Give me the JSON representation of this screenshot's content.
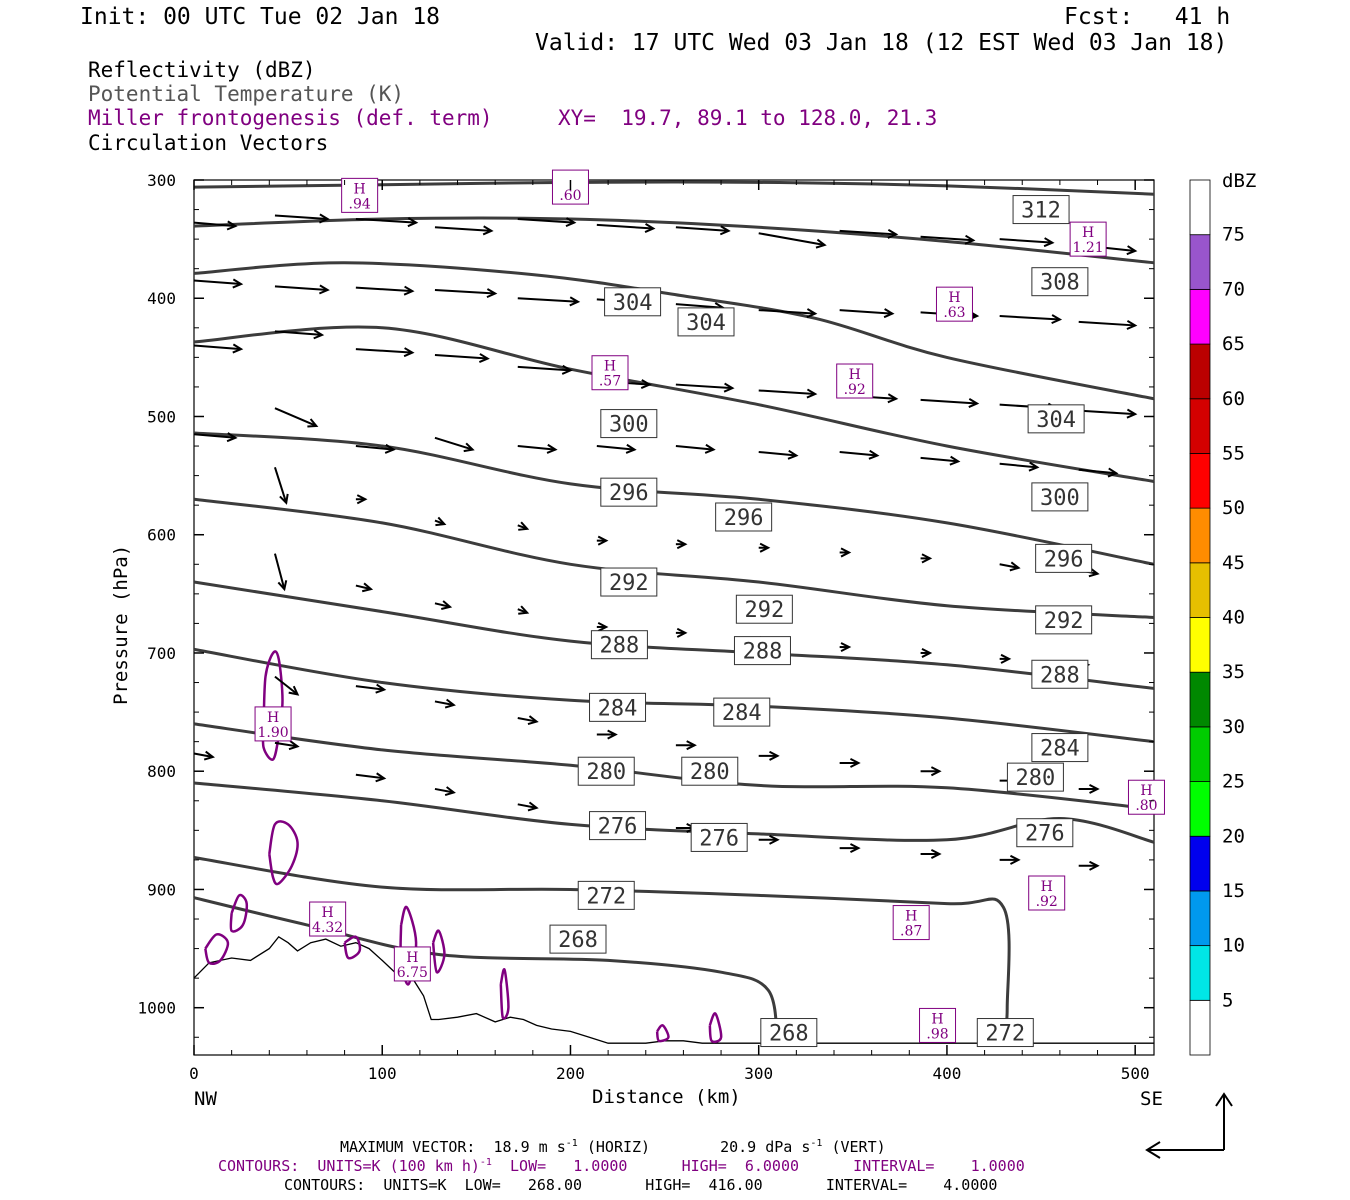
{
  "header": {
    "init": "Init: 00 UTC Tue 02 Jan 18",
    "fcst": "Fcst:   41 h",
    "valid": "Valid: 17 UTC Wed 03 Jan 18 (12 EST Wed 03 Jan 18)"
  },
  "titles": {
    "reflectivity": "Reflectivity (dBZ)",
    "theta": "Potential Temperature (K)",
    "fronto": "Miller frontogenesis (def. term)",
    "xy": "XY=  19.7, 89.1 to 128.0, 21.3",
    "circulation": "Circulation Vectors"
  },
  "axes": {
    "ylabel": "Pressure (hPa)",
    "xlabel": "Distance (km)",
    "left_end": "NW",
    "right_end": "SE",
    "xrange": [
      0,
      510
    ],
    "yrange": [
      300,
      1040
    ],
    "y_ticks": [
      300,
      400,
      500,
      600,
      700,
      800,
      900,
      1000
    ],
    "x_ticks": [
      0,
      100,
      200,
      300,
      400,
      500
    ],
    "y_tick_labels": [
      "300",
      "400",
      "500",
      "600",
      "700",
      "800",
      "900",
      "1000"
    ],
    "x_tick_labels": [
      "0",
      "100",
      "200",
      "300",
      "400",
      "500"
    ]
  },
  "colorbar": {
    "unit": "dBZ",
    "levels": [
      "5",
      "10",
      "15",
      "20",
      "25",
      "30",
      "35",
      "40",
      "45",
      "50",
      "55",
      "60",
      "65",
      "70",
      "75"
    ],
    "colors": [
      "#ffffff",
      "#00e6e6",
      "#0099ee",
      "#0000ee",
      "#00ff00",
      "#00cc00",
      "#008800",
      "#ffff00",
      "#e6bf00",
      "#ff8c00",
      "#ff0000",
      "#d40000",
      "#bb0000",
      "#ff00ff",
      "#9955cc",
      "#ffffff"
    ]
  },
  "footer": {
    "max_vector": "MAXIMUM VECTOR:  18.9 m s",
    "max_vector_sup": "-1",
    "max_vector_h": " (HORIZ)",
    "max_vector_v": "20.9 dPa s",
    "max_vector_v_sup": "-1",
    "max_vector_v2": " (VERT)",
    "contours1_a": "CONTOURS:  UNITS=K (100 km h)",
    "contours1_sup": "-1",
    "contours1_b": "  LOW=   1.0000      HIGH=  6.0000      INTERVAL=    1.0000",
    "contours2": "CONTOURS:  UNITS=K  LOW=   268.00       HIGH=  416.00       INTERVAL=    4.0000"
  },
  "theta_contours": [
    {
      "label": "312",
      "pts": [
        [
          0,
          306
        ],
        [
          100,
          304
        ],
        [
          200,
          302
        ],
        [
          300,
          302
        ],
        [
          400,
          305
        ],
        [
          510,
          312
        ]
      ],
      "labels": [
        [
          450,
          325
        ]
      ]
    },
    {
      "label": "308",
      "pts": [
        [
          0,
          339
        ],
        [
          100,
          333
        ],
        [
          200,
          333
        ],
        [
          300,
          340
        ],
        [
          400,
          352
        ],
        [
          510,
          370
        ]
      ],
      "labels": [
        [
          460,
          386
        ]
      ]
    },
    {
      "label": "304",
      "pts": [
        [
          0,
          379
        ],
        [
          80,
          370
        ],
        [
          180,
          380
        ],
        [
          260,
          398
        ],
        [
          330,
          417
        ],
        [
          400,
          450
        ],
        [
          510,
          485
        ]
      ],
      "labels": [
        [
          233,
          403
        ],
        [
          272,
          420
        ],
        [
          458,
          502
        ]
      ]
    },
    {
      "label": "300",
      "pts": [
        [
          0,
          437
        ],
        [
          100,
          425
        ],
        [
          200,
          460
        ],
        [
          300,
          490
        ],
        [
          400,
          525
        ],
        [
          510,
          555
        ]
      ],
      "labels": [
        [
          231,
          506
        ],
        [
          460,
          568
        ]
      ]
    },
    {
      "label": "296",
      "pts": [
        [
          0,
          514
        ],
        [
          100,
          525
        ],
        [
          200,
          557
        ],
        [
          300,
          570
        ],
        [
          400,
          590
        ],
        [
          510,
          625
        ]
      ],
      "labels": [
        [
          231,
          564
        ],
        [
          292,
          585
        ],
        [
          462,
          620
        ]
      ]
    },
    {
      "label": "292",
      "pts": [
        [
          0,
          570
        ],
        [
          100,
          590
        ],
        [
          200,
          625
        ],
        [
          300,
          640
        ],
        [
          400,
          660
        ],
        [
          510,
          670
        ]
      ],
      "labels": [
        [
          231,
          640
        ],
        [
          303,
          663
        ],
        [
          462,
          672
        ]
      ]
    },
    {
      "label": "288",
      "pts": [
        [
          0,
          640
        ],
        [
          100,
          665
        ],
        [
          200,
          690
        ],
        [
          300,
          700
        ],
        [
          400,
          710
        ],
        [
          510,
          730
        ]
      ],
      "labels": [
        [
          226,
          693
        ],
        [
          302,
          698
        ],
        [
          460,
          718
        ]
      ]
    },
    {
      "label": "284",
      "pts": [
        [
          0,
          697
        ],
        [
          100,
          725
        ],
        [
          200,
          740
        ],
        [
          300,
          745
        ],
        [
          400,
          755
        ],
        [
          510,
          775
        ]
      ],
      "labels": [
        [
          225,
          746
        ],
        [
          291,
          750
        ],
        [
          460,
          780
        ]
      ]
    },
    {
      "label": "280",
      "pts": [
        [
          0,
          760
        ],
        [
          100,
          782
        ],
        [
          200,
          795
        ],
        [
          300,
          812
        ],
        [
          400,
          814
        ],
        [
          510,
          832
        ]
      ],
      "labels": [
        [
          219,
          800
        ],
        [
          274,
          800
        ],
        [
          447,
          805
        ]
      ]
    },
    {
      "label": "276",
      "pts": [
        [
          0,
          810
        ],
        [
          100,
          825
        ],
        [
          200,
          845
        ],
        [
          300,
          853
        ],
        [
          400,
          858
        ],
        [
          460,
          840
        ],
        [
          510,
          860
        ]
      ],
      "labels": [
        [
          225,
          846
        ],
        [
          279,
          856
        ],
        [
          452,
          852
        ]
      ]
    },
    {
      "label": "272",
      "pts": [
        [
          0,
          873
        ],
        [
          100,
          898
        ],
        [
          200,
          900
        ],
        [
          300,
          905
        ],
        [
          400,
          912
        ],
        [
          430,
          915
        ],
        [
          432,
          1000
        ],
        [
          430,
          1030
        ]
      ],
      "labels": [
        [
          219,
          905
        ],
        [
          431,
          1021
        ]
      ]
    },
    {
      "label": "268",
      "pts": [
        [
          0,
          907
        ],
        [
          60,
          930
        ],
        [
          130,
          955
        ],
        [
          220,
          960
        ],
        [
          280,
          970
        ],
        [
          305,
          985
        ],
        [
          310,
          1030
        ]
      ],
      "labels": [
        [
          204,
          942
        ],
        [
          316,
          1021
        ]
      ]
    }
  ],
  "highs": [
    {
      "h": "H",
      "v": ".94",
      "x": 88,
      "p": 313
    },
    {
      "h": "",
      "v": ".60",
      "x": 200,
      "p": 306
    },
    {
      "h": "H",
      "v": "1.21",
      "x": 475,
      "p": 350
    },
    {
      "h": "H",
      "v": ".63",
      "x": 404,
      "p": 405
    },
    {
      "h": "H",
      "v": ".57",
      "x": 221,
      "p": 463
    },
    {
      "h": "H",
      "v": ".92",
      "x": 351,
      "p": 470
    },
    {
      "h": "H",
      "v": "1.90",
      "x": 42,
      "p": 760
    },
    {
      "h": "H",
      "v": "4.32",
      "x": 71,
      "p": 925
    },
    {
      "h": "H",
      "v": "6.75",
      "x": 116,
      "p": 963
    },
    {
      "h": "H",
      "v": ".87",
      "x": 381,
      "p": 928
    },
    {
      "h": "H",
      "v": ".92",
      "x": 453,
      "p": 903
    },
    {
      "h": "H",
      "v": ".98",
      "x": 395,
      "p": 1015
    },
    {
      "h": "H",
      "v": ".80",
      "x": 506,
      "p": 822
    }
  ],
  "fronto_contours": [
    {
      "pts": [
        [
          37,
          760
        ],
        [
          38,
          720
        ],
        [
          42,
          700
        ],
        [
          45,
          705
        ],
        [
          47,
          740
        ],
        [
          45,
          770
        ],
        [
          42,
          790
        ],
        [
          37,
          780
        ],
        [
          37,
          760
        ]
      ]
    },
    {
      "pts": [
        [
          40,
          870
        ],
        [
          43,
          845
        ],
        [
          50,
          845
        ],
        [
          55,
          860
        ],
        [
          52,
          880
        ],
        [
          45,
          895
        ],
        [
          42,
          890
        ],
        [
          40,
          870
        ]
      ]
    },
    {
      "pts": [
        [
          6,
          950
        ],
        [
          12,
          938
        ],
        [
          18,
          945
        ],
        [
          14,
          960
        ],
        [
          8,
          962
        ],
        [
          6,
          950
        ]
      ]
    },
    {
      "pts": [
        [
          20,
          920
        ],
        [
          24,
          905
        ],
        [
          28,
          912
        ],
        [
          26,
          930
        ],
        [
          20,
          935
        ],
        [
          20,
          920
        ]
      ]
    },
    {
      "pts": [
        [
          80,
          945
        ],
        [
          86,
          940
        ],
        [
          88,
          952
        ],
        [
          82,
          958
        ],
        [
          80,
          945
        ]
      ]
    },
    {
      "pts": [
        [
          110,
          930
        ],
        [
          113,
          915
        ],
        [
          118,
          945
        ],
        [
          114,
          980
        ],
        [
          110,
          960
        ],
        [
          110,
          930
        ]
      ]
    },
    {
      "pts": [
        [
          127,
          945
        ],
        [
          130,
          935
        ],
        [
          133,
          955
        ],
        [
          129,
          970
        ],
        [
          127,
          945
        ]
      ]
    },
    {
      "pts": [
        [
          163,
          980
        ],
        [
          165,
          968
        ],
        [
          167,
          1000
        ],
        [
          164,
          1008
        ],
        [
          163,
          980
        ]
      ]
    },
    {
      "pts": [
        [
          246,
          1020
        ],
        [
          249,
          1015
        ],
        [
          252,
          1025
        ],
        [
          247,
          1028
        ],
        [
          246,
          1020
        ]
      ]
    },
    {
      "pts": [
        [
          274,
          1015
        ],
        [
          277,
          1005
        ],
        [
          280,
          1025
        ],
        [
          275,
          1028
        ],
        [
          274,
          1015
        ]
      ]
    }
  ],
  "vectors": [
    [
      0,
      336,
      22,
      -3
    ],
    [
      43,
      330,
      28,
      -3
    ],
    [
      86,
      333,
      32,
      -3
    ],
    [
      128,
      340,
      30,
      -3
    ],
    [
      172,
      333,
      30,
      -3
    ],
    [
      214,
      338,
      30,
      -3
    ],
    [
      256,
      340,
      28,
      -3
    ],
    [
      300,
      345,
      35,
      -10
    ],
    [
      343,
      343,
      30,
      -3
    ],
    [
      386,
      348,
      28,
      -3
    ],
    [
      428,
      350,
      28,
      -3
    ],
    [
      470,
      355,
      30,
      -5
    ],
    [
      0,
      385,
      25,
      -3
    ],
    [
      43,
      390,
      28,
      -3
    ],
    [
      86,
      391,
      30,
      -3
    ],
    [
      128,
      393,
      32,
      -3
    ],
    [
      172,
      400,
      32,
      -3
    ],
    [
      214,
      401,
      28,
      -3
    ],
    [
      256,
      405,
      25,
      -3
    ],
    [
      300,
      410,
      30,
      -3
    ],
    [
      343,
      410,
      28,
      -3
    ],
    [
      386,
      412,
      30,
      -3
    ],
    [
      428,
      415,
      32,
      -3
    ],
    [
      470,
      420,
      30,
      -3
    ],
    [
      0,
      440,
      25,
      -3
    ],
    [
      43,
      428,
      25,
      -3
    ],
    [
      86,
      443,
      30,
      -3
    ],
    [
      128,
      448,
      28,
      -3
    ],
    [
      172,
      458,
      28,
      -3
    ],
    [
      214,
      470,
      28,
      -3
    ],
    [
      256,
      473,
      30,
      -3
    ],
    [
      300,
      478,
      30,
      -3
    ],
    [
      343,
      482,
      30,
      -3
    ],
    [
      386,
      486,
      30,
      -3
    ],
    [
      428,
      490,
      30,
      -3
    ],
    [
      470,
      495,
      30,
      -3
    ],
    [
      0,
      515,
      22,
      -3
    ],
    [
      43,
      493,
      22,
      -15
    ],
    [
      86,
      525,
      20,
      -3
    ],
    [
      128,
      518,
      20,
      -10
    ],
    [
      172,
      525,
      20,
      -3
    ],
    [
      214,
      525,
      20,
      -3
    ],
    [
      256,
      525,
      20,
      -3
    ],
    [
      300,
      530,
      20,
      -3
    ],
    [
      343,
      530,
      20,
      -3
    ],
    [
      386,
      535,
      20,
      -3
    ],
    [
      428,
      540,
      20,
      -3
    ],
    [
      470,
      545,
      20,
      -3
    ],
    [
      43,
      543,
      6,
      -30
    ],
    [
      86,
      570,
      5,
      0
    ],
    [
      128,
      588,
      5,
      -3
    ],
    [
      172,
      592,
      5,
      -3
    ],
    [
      214,
      605,
      5,
      0
    ],
    [
      256,
      608,
      5,
      0
    ],
    [
      300,
      611,
      5,
      0
    ],
    [
      343,
      615,
      5,
      0
    ],
    [
      386,
      620,
      5,
      0
    ],
    [
      428,
      625,
      10,
      -3
    ],
    [
      470,
      630,
      10,
      -3
    ],
    [
      43,
      616,
      5,
      -30
    ],
    [
      86,
      643,
      8,
      -3
    ],
    [
      128,
      658,
      8,
      -3
    ],
    [
      172,
      663,
      5,
      -3
    ],
    [
      214,
      678,
      5,
      0
    ],
    [
      256,
      683,
      5,
      0
    ],
    [
      300,
      690,
      5,
      0
    ],
    [
      343,
      695,
      5,
      0
    ],
    [
      386,
      700,
      5,
      0
    ],
    [
      428,
      705,
      5,
      0
    ],
    [
      470,
      710,
      5,
      0
    ],
    [
      43,
      720,
      12,
      -15
    ],
    [
      86,
      728,
      15,
      -3
    ],
    [
      128,
      741,
      10,
      -3
    ],
    [
      172,
      755,
      10,
      -3
    ],
    [
      214,
      769,
      10,
      0
    ],
    [
      256,
      778,
      10,
      0
    ],
    [
      300,
      787,
      10,
      0
    ],
    [
      343,
      793,
      10,
      0
    ],
    [
      386,
      800,
      10,
      0
    ],
    [
      428,
      808,
      10,
      0
    ],
    [
      470,
      815,
      10,
      0
    ],
    [
      0,
      785,
      10,
      -3
    ],
    [
      43,
      776,
      12,
      -3
    ],
    [
      86,
      803,
      15,
      -3
    ],
    [
      128,
      815,
      10,
      -3
    ],
    [
      172,
      828,
      10,
      -3
    ],
    [
      214,
      838,
      10,
      0
    ],
    [
      256,
      848,
      10,
      0
    ],
    [
      300,
      858,
      10,
      0
    ],
    [
      343,
      865,
      10,
      0
    ],
    [
      386,
      870,
      10,
      0
    ],
    [
      428,
      875,
      10,
      0
    ],
    [
      470,
      880,
      10,
      0
    ]
  ],
  "terrain": [
    [
      0,
      975
    ],
    [
      8,
      962
    ],
    [
      20,
      958
    ],
    [
      30,
      960
    ],
    [
      40,
      950
    ],
    [
      45,
      940
    ],
    [
      50,
      945
    ],
    [
      55,
      952
    ],
    [
      62,
      945
    ],
    [
      70,
      942
    ],
    [
      78,
      948
    ],
    [
      86,
      945
    ],
    [
      93,
      950
    ],
    [
      100,
      960
    ],
    [
      108,
      972
    ],
    [
      116,
      975
    ],
    [
      122,
      990
    ],
    [
      126,
      1010
    ],
    [
      130,
      1010
    ],
    [
      140,
      1008
    ],
    [
      150,
      1005
    ],
    [
      160,
      1012
    ],
    [
      168,
      1008
    ],
    [
      175,
      1010
    ],
    [
      182,
      1015
    ],
    [
      190,
      1018
    ],
    [
      200,
      1020
    ],
    [
      210,
      1025
    ],
    [
      220,
      1030
    ],
    [
      230,
      1030
    ],
    [
      240,
      1030
    ],
    [
      250,
      1028
    ],
    [
      260,
      1028
    ],
    [
      270,
      1030
    ],
    [
      280,
      1030
    ],
    [
      290,
      1030
    ],
    [
      300,
      1030
    ],
    [
      400,
      1030
    ],
    [
      510,
      1030
    ]
  ]
}
